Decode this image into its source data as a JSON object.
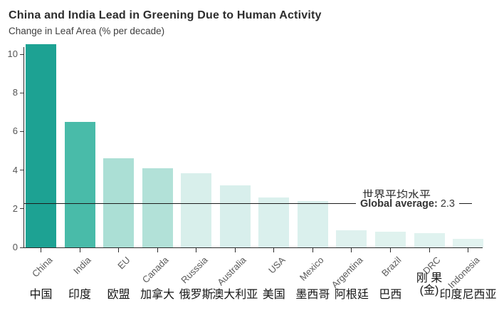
{
  "chart_data": {
    "type": "bar",
    "title": "China and India Lead in Greening Due to Human Activity",
    "subtitle": "Change in Leaf Area (% per decade)",
    "ylabel": "Change in Leaf Area (% per decade)",
    "ylim": [
      0,
      10.6
    ],
    "yticks": [
      0,
      2,
      4,
      6,
      8,
      10
    ],
    "grid": false,
    "legend": "none",
    "accent_color": "#1da293",
    "bars": [
      {
        "en": "China",
        "cn": "中国",
        "value": 10.5,
        "color": "#1da293"
      },
      {
        "en": "India",
        "cn": "印度",
        "value": 6.5,
        "color": "#49bba9"
      },
      {
        "en": "EU",
        "cn": "欧盟",
        "value": 4.6,
        "color": "#abdfd5"
      },
      {
        "en": "Canada",
        "cn": "加拿大",
        "value": 4.1,
        "color": "#b2e1d8"
      },
      {
        "en": "Russsia",
        "cn": "俄罗斯",
        "value": 3.85,
        "color": "#d8efeb"
      },
      {
        "en": "Australia",
        "cn": "澳大利亚",
        "value": 3.2,
        "color": "#d8efec"
      },
      {
        "en": "USA",
        "cn": "美国",
        "value": 2.6,
        "color": "#daf0ed"
      },
      {
        "en": "Mexico",
        "cn": "墨西哥",
        "value": 2.4,
        "color": "#daf0ed"
      },
      {
        "en": "Argentina",
        "cn": "阿根廷",
        "value": 0.9,
        "color": "#def1ee"
      },
      {
        "en": "Brazil",
        "cn": "巴西",
        "value": 0.8,
        "color": "#dff2ee"
      },
      {
        "en": "DRC",
        "cn": "刚 果",
        "cn2": "(金)",
        "value": 0.75,
        "color": "#dff2ef"
      },
      {
        "en": "Indonesia",
        "cn": "印度尼西亚",
        "value": 0.45,
        "color": "#e2f3f0"
      }
    ],
    "annotation": {
      "cn": "世界平均水平",
      "en_label": "Global average:",
      "value": "2.3",
      "line_value": 2.3
    }
  }
}
